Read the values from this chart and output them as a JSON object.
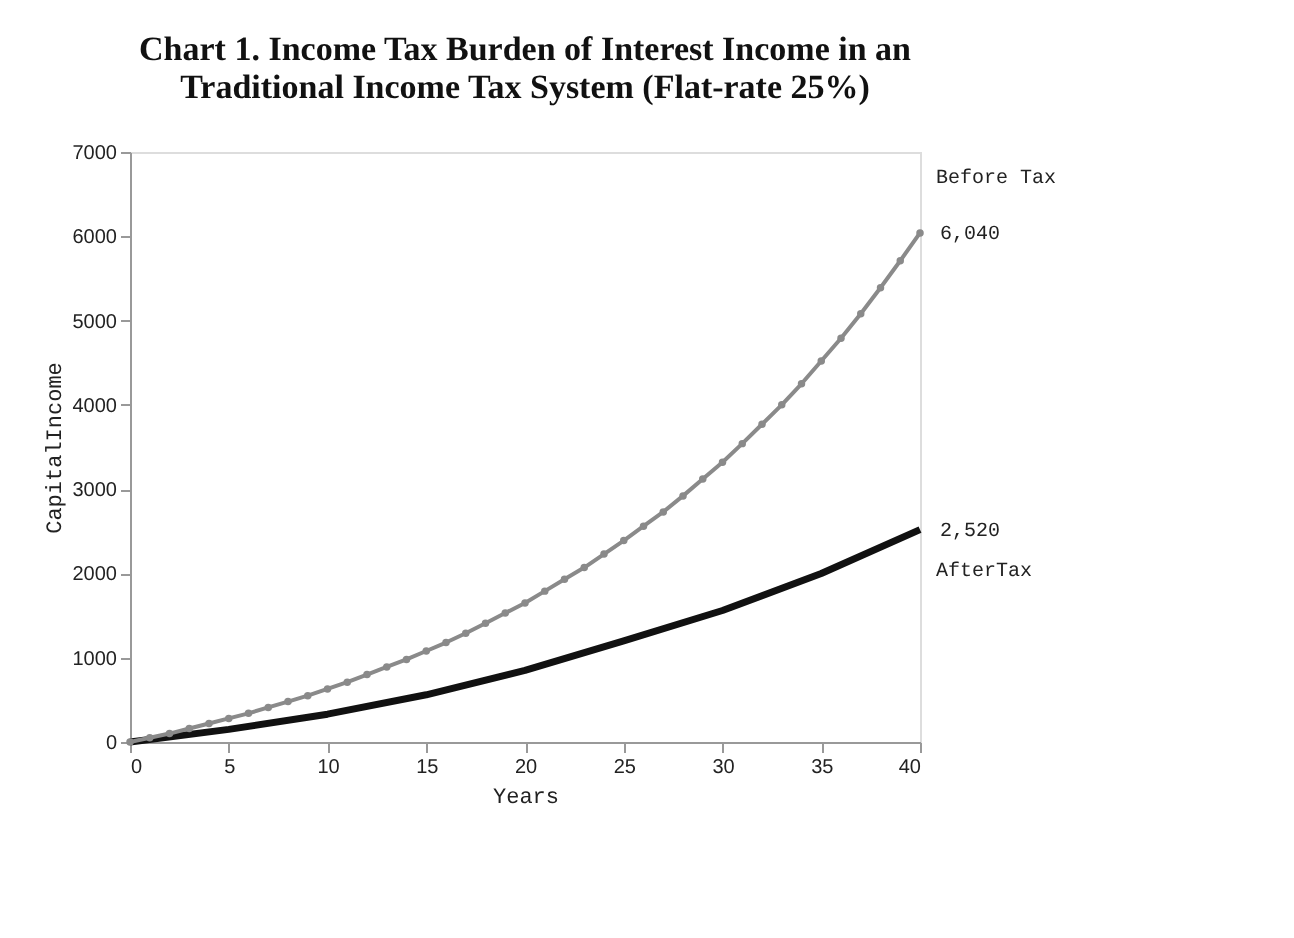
{
  "chart_data": {
    "type": "line",
    "title": [
      "Chart 1. Income Tax Burden of Interest Income in an",
      "Traditional Income Tax System (Flat-rate 25%)"
    ],
    "xlabel": "Years",
    "ylabel": "CapitalIncome",
    "xlim": [
      0,
      40
    ],
    "xticks": [
      0,
      5,
      10,
      15,
      20,
      25,
      30,
      35,
      40
    ],
    "ylim": [
      0,
      7000
    ],
    "yticks": [
      0,
      1000,
      2000,
      3000,
      4000,
      5000,
      6000,
      7000
    ],
    "grid": false,
    "series": [
      {
        "name": "Before Tax",
        "color": "#8a8a8a",
        "marker": "circle",
        "x": [
          0,
          1,
          2,
          3,
          4,
          5,
          6,
          7,
          8,
          9,
          10,
          11,
          12,
          13,
          14,
          15,
          16,
          17,
          18,
          19,
          20,
          21,
          22,
          23,
          24,
          25,
          26,
          27,
          28,
          29,
          30,
          31,
          32,
          33,
          34,
          35,
          36,
          37,
          38,
          39,
          40
        ],
        "values": [
          0,
          50,
          100,
          160,
          220,
          280,
          340,
          410,
          480,
          550,
          630,
          710,
          800,
          890,
          980,
          1080,
          1180,
          1290,
          1410,
          1530,
          1650,
          1790,
          1930,
          2070,
          2230,
          2390,
          2560,
          2730,
          2920,
          3120,
          3320,
          3540,
          3770,
          4000,
          4250,
          4520,
          4790,
          5080,
          5390,
          5710,
          6040
        ],
        "value_labels": [
          null,
          null,
          null,
          null,
          null,
          null,
          null,
          null,
          null,
          null,
          null,
          null,
          null,
          null,
          null,
          null,
          null,
          null,
          null,
          null,
          null,
          null,
          null,
          null,
          null,
          null,
          null,
          null,
          null,
          null,
          null,
          null,
          null,
          null,
          null,
          null,
          null,
          null,
          null,
          null,
          "6,040"
        ]
      },
      {
        "name": "AfterTax",
        "color": "#111111",
        "marker": "none",
        "x": [
          0,
          5,
          10,
          15,
          20,
          25,
          30,
          35,
          40
        ],
        "values": [
          0,
          150,
          330,
          560,
          850,
          1200,
          1560,
          2000,
          2520
        ],
        "value_labels": [
          null,
          null,
          null,
          null,
          null,
          null,
          null,
          null,
          "2,520"
        ]
      }
    ]
  }
}
